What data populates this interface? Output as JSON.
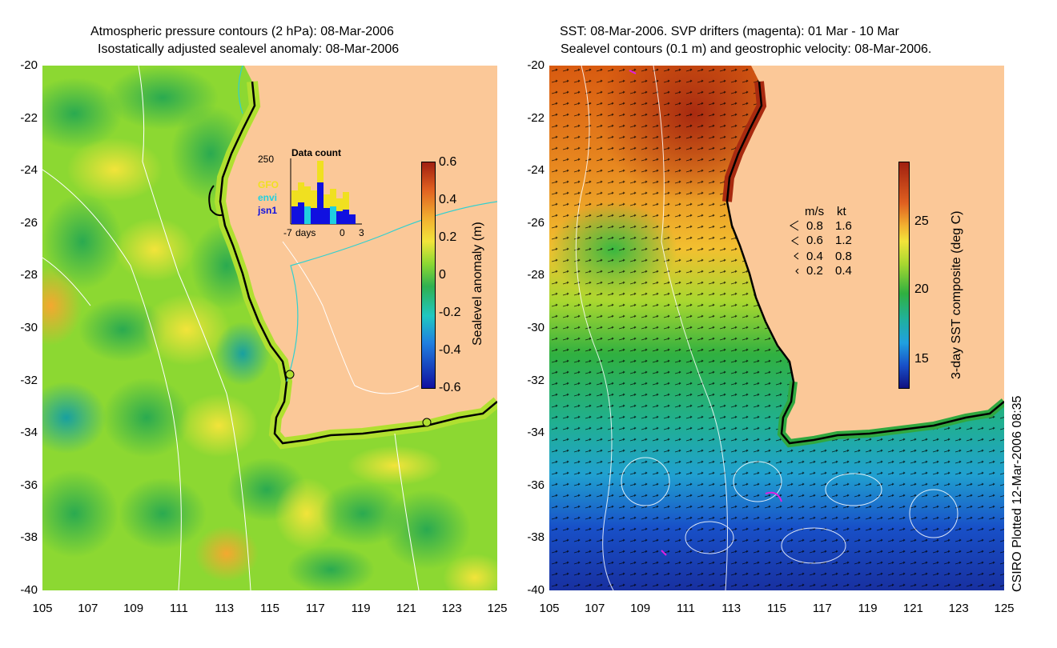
{
  "left": {
    "title_line1": "Atmospheric pressure contours (2 hPa): 08-Mar-2006",
    "title_line2": "Isostatically adjusted sealevel anomaly: 08-Mar-2006",
    "colorbar_label": "Sealevel anomaly (m)",
    "colorbar_ticks": [
      "0.6",
      "0.4",
      "0.2",
      "0",
      "-0.2",
      "-0.4",
      "-0.6"
    ],
    "inset": {
      "title": "Data count",
      "ymax_label": "250",
      "x_labels": [
        "-7",
        "days",
        "0",
        "3"
      ],
      "legend": [
        {
          "label": "GFO",
          "color": "#f0e020"
        },
        {
          "label": "envi",
          "color": "#20d0e0"
        },
        {
          "label": "jsn1",
          "color": "#1010e0"
        }
      ]
    }
  },
  "right": {
    "title_line1": "SST: 08-Mar-2006. SVP drifters (magenta): 01 Mar - 10 Mar",
    "title_line2": "Sealevel contours (0.1 m) and geostrophic velocity: 08-Mar-2006.",
    "colorbar_label": "3-day SST composite (deg C)",
    "colorbar_ticks": [
      "25",
      "20",
      "15"
    ],
    "velocity_legend": {
      "header_ms": "m/s",
      "header_kt": "kt",
      "rows": [
        {
          "ms": "0.8",
          "kt": "1.6"
        },
        {
          "ms": "0.6",
          "kt": "1.2"
        },
        {
          "ms": "0.4",
          "kt": "0.8"
        },
        {
          "ms": "0.2",
          "kt": "0.4"
        }
      ]
    },
    "credit": "CSIRO Plotted 12-Mar-2006 08:35"
  },
  "axes": {
    "y_ticks": [
      "-20",
      "-22",
      "-24",
      "-26",
      "-28",
      "-30",
      "-32",
      "-34",
      "-36",
      "-38",
      "-40"
    ],
    "x_ticks": [
      "105",
      "107",
      "109",
      "111",
      "113",
      "115",
      "117",
      "119",
      "121",
      "123",
      "125"
    ]
  },
  "colors": {
    "land": "#fbc898",
    "coast": "#000000",
    "pressure_contour": "#ffffff"
  }
}
